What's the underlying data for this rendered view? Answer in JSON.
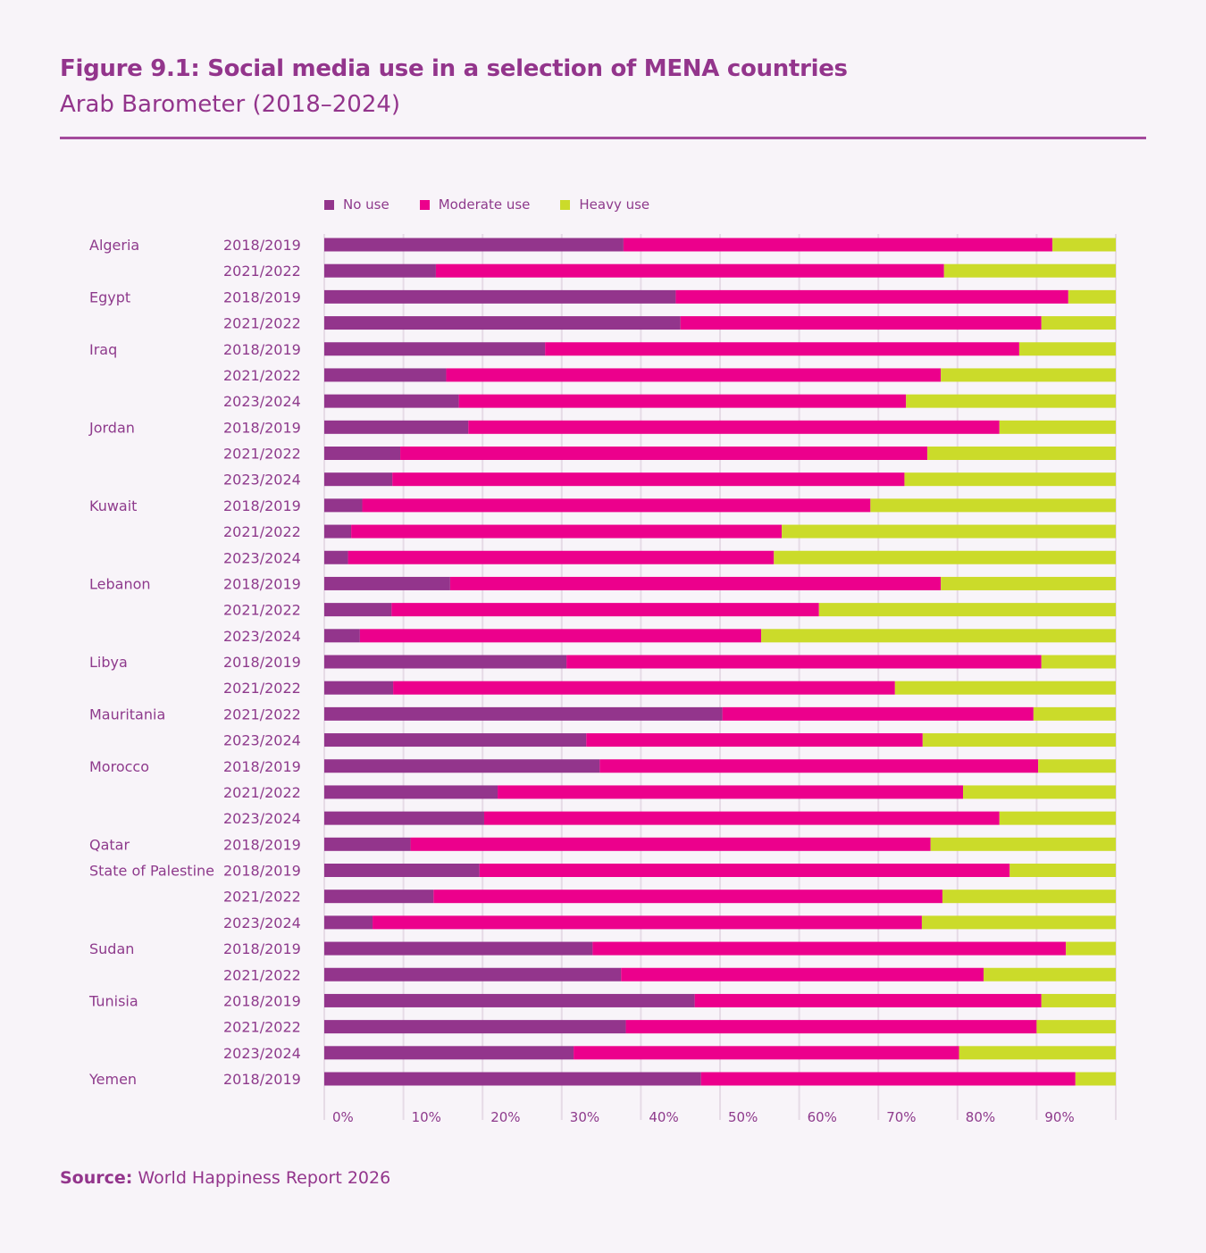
{
  "header": {
    "title": "Figure 9.1: Social media use in a selection of MENA countries",
    "subtitle": "Arab Barometer (2018–2024)"
  },
  "footer": {
    "source_label": "Source:",
    "source_text": " World Happiness Report 2026"
  },
  "colors": {
    "no_use": "#93358c",
    "moderate_use": "#ec008c",
    "heavy_use": "#cbdb2a",
    "grid": "#e6dbe6",
    "text": "#8e3a8c"
  },
  "chart_data": {
    "type": "bar",
    "orientation": "horizontal-stacked-100",
    "title": "Figure 9.1: Social media use in a selection of MENA countries",
    "subtitle": "Arab Barometer (2018–2024)",
    "xlabel": "",
    "ylabel": "",
    "xlim": [
      0,
      100
    ],
    "x_ticks": [
      "0%",
      "10%",
      "20%",
      "30%",
      "40%",
      "50%",
      "60%",
      "70%",
      "80%",
      "90%"
    ],
    "grid": true,
    "legend_position": "top-left",
    "legend": [
      "No use",
      "Moderate use",
      "Heavy use"
    ],
    "rows": [
      {
        "country": "Algeria",
        "wave": "2018/2019",
        "no_use": 37.8,
        "moderate_use": 54.2,
        "heavy_use": 8.0
      },
      {
        "country": "",
        "wave": "2021/2022",
        "no_use": 14.1,
        "moderate_use": 64.2,
        "heavy_use": 21.7
      },
      {
        "country": "Egypt",
        "wave": "2018/2019",
        "no_use": 44.4,
        "moderate_use": 49.6,
        "heavy_use": 6.0
      },
      {
        "country": "",
        "wave": "2021/2022",
        "no_use": 45.0,
        "moderate_use": 45.6,
        "heavy_use": 9.4
      },
      {
        "country": "Iraq",
        "wave": "2018/2019",
        "no_use": 27.9,
        "moderate_use": 59.9,
        "heavy_use": 12.2
      },
      {
        "country": "",
        "wave": "2021/2022",
        "no_use": 15.4,
        "moderate_use": 62.5,
        "heavy_use": 22.1
      },
      {
        "country": "",
        "wave": "2023/2024",
        "no_use": 17.0,
        "moderate_use": 56.5,
        "heavy_use": 26.5
      },
      {
        "country": "Jordan",
        "wave": "2018/2019",
        "no_use": 18.2,
        "moderate_use": 67.1,
        "heavy_use": 14.7
      },
      {
        "country": "",
        "wave": "2021/2022",
        "no_use": 9.6,
        "moderate_use": 66.6,
        "heavy_use": 23.8
      },
      {
        "country": "",
        "wave": "2023/2024",
        "no_use": 8.6,
        "moderate_use": 64.7,
        "heavy_use": 26.7
      },
      {
        "country": "Kuwait",
        "wave": "2018/2019",
        "no_use": 4.8,
        "moderate_use": 64.2,
        "heavy_use": 31.0
      },
      {
        "country": "",
        "wave": "2021/2022",
        "no_use": 3.4,
        "moderate_use": 54.4,
        "heavy_use": 42.2
      },
      {
        "country": "",
        "wave": "2023/2024",
        "no_use": 3.0,
        "moderate_use": 53.8,
        "heavy_use": 43.2
      },
      {
        "country": "Lebanon",
        "wave": "2018/2019",
        "no_use": 15.9,
        "moderate_use": 62.0,
        "heavy_use": 22.1
      },
      {
        "country": "",
        "wave": "2021/2022",
        "no_use": 8.5,
        "moderate_use": 54.0,
        "heavy_use": 37.5
      },
      {
        "country": "",
        "wave": "2023/2024",
        "no_use": 4.5,
        "moderate_use": 50.7,
        "heavy_use": 44.8
      },
      {
        "country": "Libya",
        "wave": "2018/2019",
        "no_use": 30.6,
        "moderate_use": 60.0,
        "heavy_use": 9.4
      },
      {
        "country": "",
        "wave": "2021/2022",
        "no_use": 8.7,
        "moderate_use": 63.4,
        "heavy_use": 27.9
      },
      {
        "country": "Mauritania",
        "wave": "2021/2022",
        "no_use": 50.3,
        "moderate_use": 39.3,
        "heavy_use": 10.4
      },
      {
        "country": "",
        "wave": "2023/2024",
        "no_use": 33.1,
        "moderate_use": 42.5,
        "heavy_use": 24.4
      },
      {
        "country": "Morocco",
        "wave": "2018/2019",
        "no_use": 34.8,
        "moderate_use": 55.4,
        "heavy_use": 9.8
      },
      {
        "country": "",
        "wave": "2021/2022",
        "no_use": 21.9,
        "moderate_use": 58.8,
        "heavy_use": 19.3
      },
      {
        "country": "",
        "wave": "2023/2024",
        "no_use": 20.2,
        "moderate_use": 65.1,
        "heavy_use": 14.7
      },
      {
        "country": "Qatar",
        "wave": "2018/2019",
        "no_use": 10.9,
        "moderate_use": 65.7,
        "heavy_use": 23.4
      },
      {
        "country": "State of Palestine",
        "wave": "2018/2019",
        "no_use": 19.6,
        "moderate_use": 67.0,
        "heavy_use": 13.4
      },
      {
        "country": "",
        "wave": "2021/2022",
        "no_use": 13.8,
        "moderate_use": 64.3,
        "heavy_use": 21.9
      },
      {
        "country": "",
        "wave": "2023/2024",
        "no_use": 6.1,
        "moderate_use": 69.4,
        "heavy_use": 24.5
      },
      {
        "country": "Sudan",
        "wave": "2018/2019",
        "no_use": 33.9,
        "moderate_use": 59.8,
        "heavy_use": 6.3
      },
      {
        "country": "",
        "wave": "2021/2022",
        "no_use": 37.5,
        "moderate_use": 45.8,
        "heavy_use": 16.7
      },
      {
        "country": "Tunisia",
        "wave": "2018/2019",
        "no_use": 46.8,
        "moderate_use": 43.8,
        "heavy_use": 9.4
      },
      {
        "country": "",
        "wave": "2021/2022",
        "no_use": 38.1,
        "moderate_use": 51.9,
        "heavy_use": 10.0
      },
      {
        "country": "",
        "wave": "2023/2024",
        "no_use": 31.5,
        "moderate_use": 48.7,
        "heavy_use": 19.8
      },
      {
        "country": "Yemen",
        "wave": "2018/2019",
        "no_use": 47.6,
        "moderate_use": 47.3,
        "heavy_use": 5.1
      }
    ]
  }
}
